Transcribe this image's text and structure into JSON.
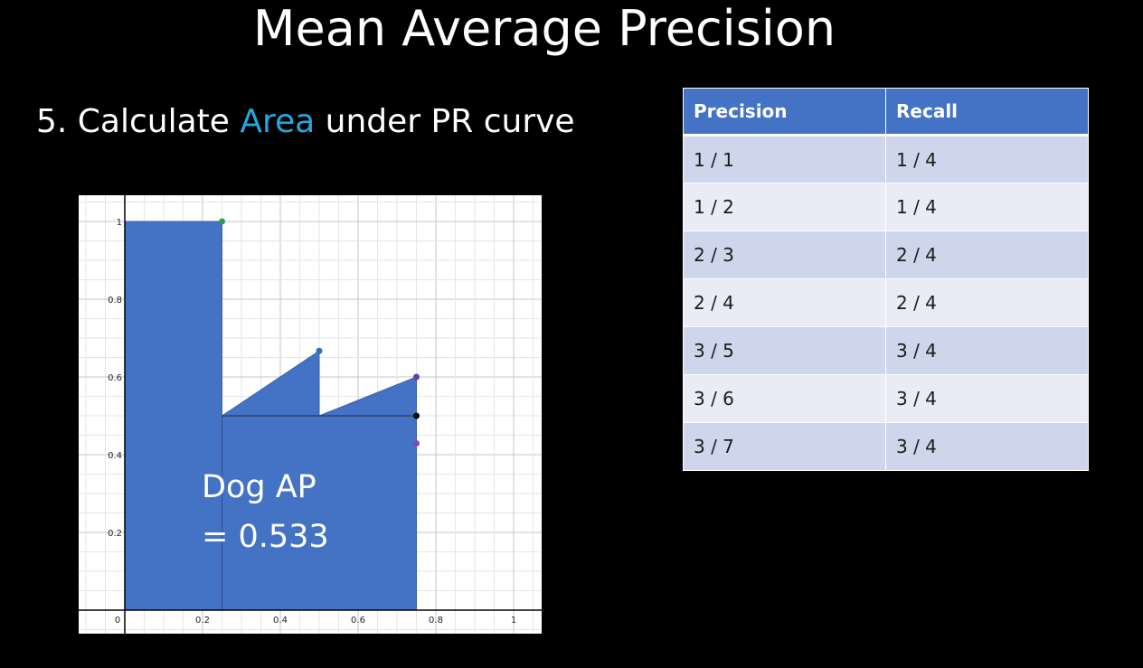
{
  "slide": {
    "title": "Mean Average Precision",
    "step_prefix": "5. Calculate ",
    "step_highlight": "Area",
    "step_suffix": " under PR curve",
    "highlight_color": "#27a6df"
  },
  "table": {
    "headers": [
      "Precision",
      "Recall"
    ],
    "rows": [
      [
        "1 / 1",
        "1 / 4"
      ],
      [
        "1 / 2",
        "1 / 4"
      ],
      [
        "2 / 3",
        "2 / 4"
      ],
      [
        "2 / 4",
        "2 / 4"
      ],
      [
        "3 / 5",
        "3 / 4"
      ],
      [
        "3 / 6",
        "3 / 4"
      ],
      [
        "3 / 7",
        "3 / 4"
      ]
    ],
    "header_color": "#4472c4",
    "row_colors": [
      "#cfd5ea",
      "#e9ebf5"
    ]
  },
  "chart_data": {
    "type": "area",
    "xlim": [
      0,
      1
    ],
    "ylim": [
      0,
      1
    ],
    "x_ticks": [
      "0",
      "0.2",
      "0.4",
      "0.6",
      "0.8",
      "1"
    ],
    "y_ticks": [
      "0.2",
      "0.4",
      "0.6",
      "0.8",
      "1"
    ],
    "grid": true,
    "fill_color": "#4472c4",
    "pr_curve": [
      {
        "x": 0,
        "y": 1
      },
      {
        "x": 0.25,
        "y": 1
      },
      {
        "x": 0.25,
        "y": 0.5
      },
      {
        "x": 0.5,
        "y": 0.667
      },
      {
        "x": 0.5,
        "y": 0.5
      },
      {
        "x": 0.75,
        "y": 0.6
      },
      {
        "x": 0.75,
        "y": 0
      }
    ],
    "points": [
      {
        "x": 0.25,
        "y": 1,
        "color": "#2e9e4f"
      },
      {
        "x": 0.5,
        "y": 0.667,
        "color": "#2d70b3"
      },
      {
        "x": 0.75,
        "y": 0.6,
        "color": "#6042a6"
      },
      {
        "x": 0.75,
        "y": 0.5,
        "color": "#000000"
      },
      {
        "x": 0.75,
        "y": 0.429,
        "color": "#8e44ad"
      }
    ],
    "annotation_lines": [
      "Dog AP",
      "= 0.533"
    ]
  }
}
